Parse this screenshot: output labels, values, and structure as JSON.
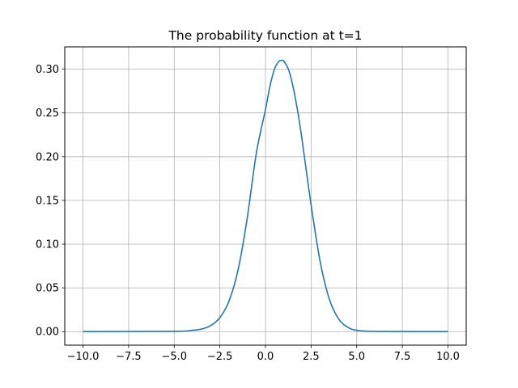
{
  "chart_data": {
    "type": "line",
    "title": "The probability function at t=1",
    "xlabel": "",
    "ylabel": "",
    "xlim": [
      -11.0,
      11.0
    ],
    "ylim": [
      -0.0155,
      0.3255
    ],
    "grid": true,
    "x_ticks": [
      -10.0,
      -7.5,
      -5.0,
      -2.5,
      0.0,
      2.5,
      5.0,
      7.5,
      10.0
    ],
    "x_tick_labels": [
      "−10.0",
      "−7.5",
      "−5.0",
      "−2.5",
      "0.0",
      "2.5",
      "5.0",
      "7.5",
      "10.0"
    ],
    "y_ticks": [
      0.0,
      0.05,
      0.1,
      0.15,
      0.2,
      0.25,
      0.3
    ],
    "y_tick_labels": [
      "0.00",
      "0.05",
      "0.10",
      "0.15",
      "0.20",
      "0.25",
      "0.30"
    ],
    "series": [
      {
        "color": "#1f77b4",
        "x": [
          -10,
          -5,
          -4,
          -3.5,
          -3,
          -2.5,
          -2,
          -1.5,
          -1,
          -0.5,
          0,
          0.25,
          0.5,
          0.75,
          0.9,
          1.0,
          1.25,
          1.5,
          1.75,
          2.0,
          2.5,
          3.0,
          3.5,
          4.0,
          4.5,
          5.0,
          6.0,
          10
        ],
        "y": [
          0.0,
          0.0004,
          0.0015,
          0.003,
          0.0069,
          0.0159,
          0.0348,
          0.0707,
          0.1298,
          0.2042,
          0.2538,
          0.2811,
          0.3003,
          0.3093,
          0.31,
          0.3093,
          0.3003,
          0.2811,
          0.2538,
          0.2202,
          0.1448,
          0.0797,
          0.0371,
          0.0148,
          0.0051,
          0.0015,
          0.0003,
          0.0
        ]
      }
    ]
  }
}
